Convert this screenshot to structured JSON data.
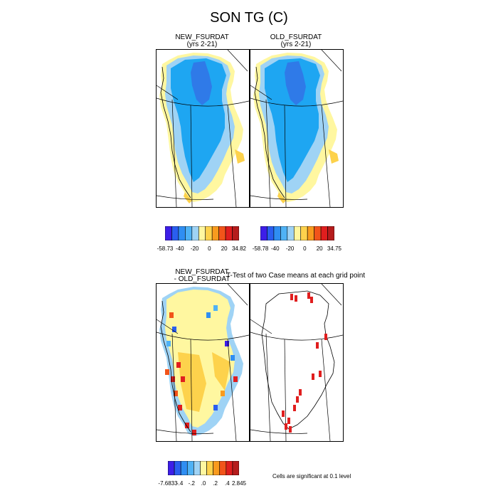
{
  "title": "SON TG (C)",
  "panels": {
    "new": {
      "title": "NEW_FSURDAT",
      "subtitle": "(yrs 2-21)"
    },
    "old": {
      "title": "OLD_FSURDAT",
      "subtitle": "(yrs 2-21)"
    },
    "diff": {
      "title_line1": "NEW_FSURDAT",
      "title_line2": "- OLD_FSURDAT"
    },
    "ttest": {
      "title": "T-Test of two Case means at each grid point"
    }
  },
  "colorbars": {
    "new": {
      "colors": [
        "#3d1ee8",
        "#2a5ef0",
        "#2f8ef2",
        "#4fb2f5",
        "#9fd3f5",
        "#fff7a0",
        "#fdd24c",
        "#f99b1e",
        "#f2541a",
        "#e01e1e",
        "#b51c1c"
      ],
      "labels": [
        "-58.73",
        "-40",
        "-20",
        "0",
        "20",
        "34.82"
      ]
    },
    "old": {
      "colors": [
        "#3d1ee8",
        "#2a5ef0",
        "#2f8ef2",
        "#4fb2f5",
        "#9fd3f5",
        "#fff7a0",
        "#fdd24c",
        "#f99b1e",
        "#f2541a",
        "#e01e1e",
        "#b51c1c"
      ],
      "labels": [
        "-58.78",
        "-40",
        "-20",
        "0",
        "20",
        "34.75"
      ]
    },
    "diff": {
      "colors": [
        "#3d1ee8",
        "#2a5ef0",
        "#2f8ef2",
        "#4fb2f5",
        "#9fd3f5",
        "#fff7a0",
        "#fdd24c",
        "#f99b1e",
        "#f2541a",
        "#e01e1e",
        "#b51c1c"
      ],
      "labels": [
        "-7.6833",
        "-.4",
        "-.2",
        ".0",
        ".2",
        ".4",
        "2.845"
      ]
    }
  },
  "significance_note": "Cells are significant at 0.1 level",
  "colors": {
    "ice_dark": "#2f7ae8",
    "ice_mid": "#1ea6f2",
    "ice_light": "#9fd3f5",
    "margin_yellow": "#fff7a0",
    "margin_orange": "#fdd24c",
    "sig_red": "#e01e1e"
  }
}
